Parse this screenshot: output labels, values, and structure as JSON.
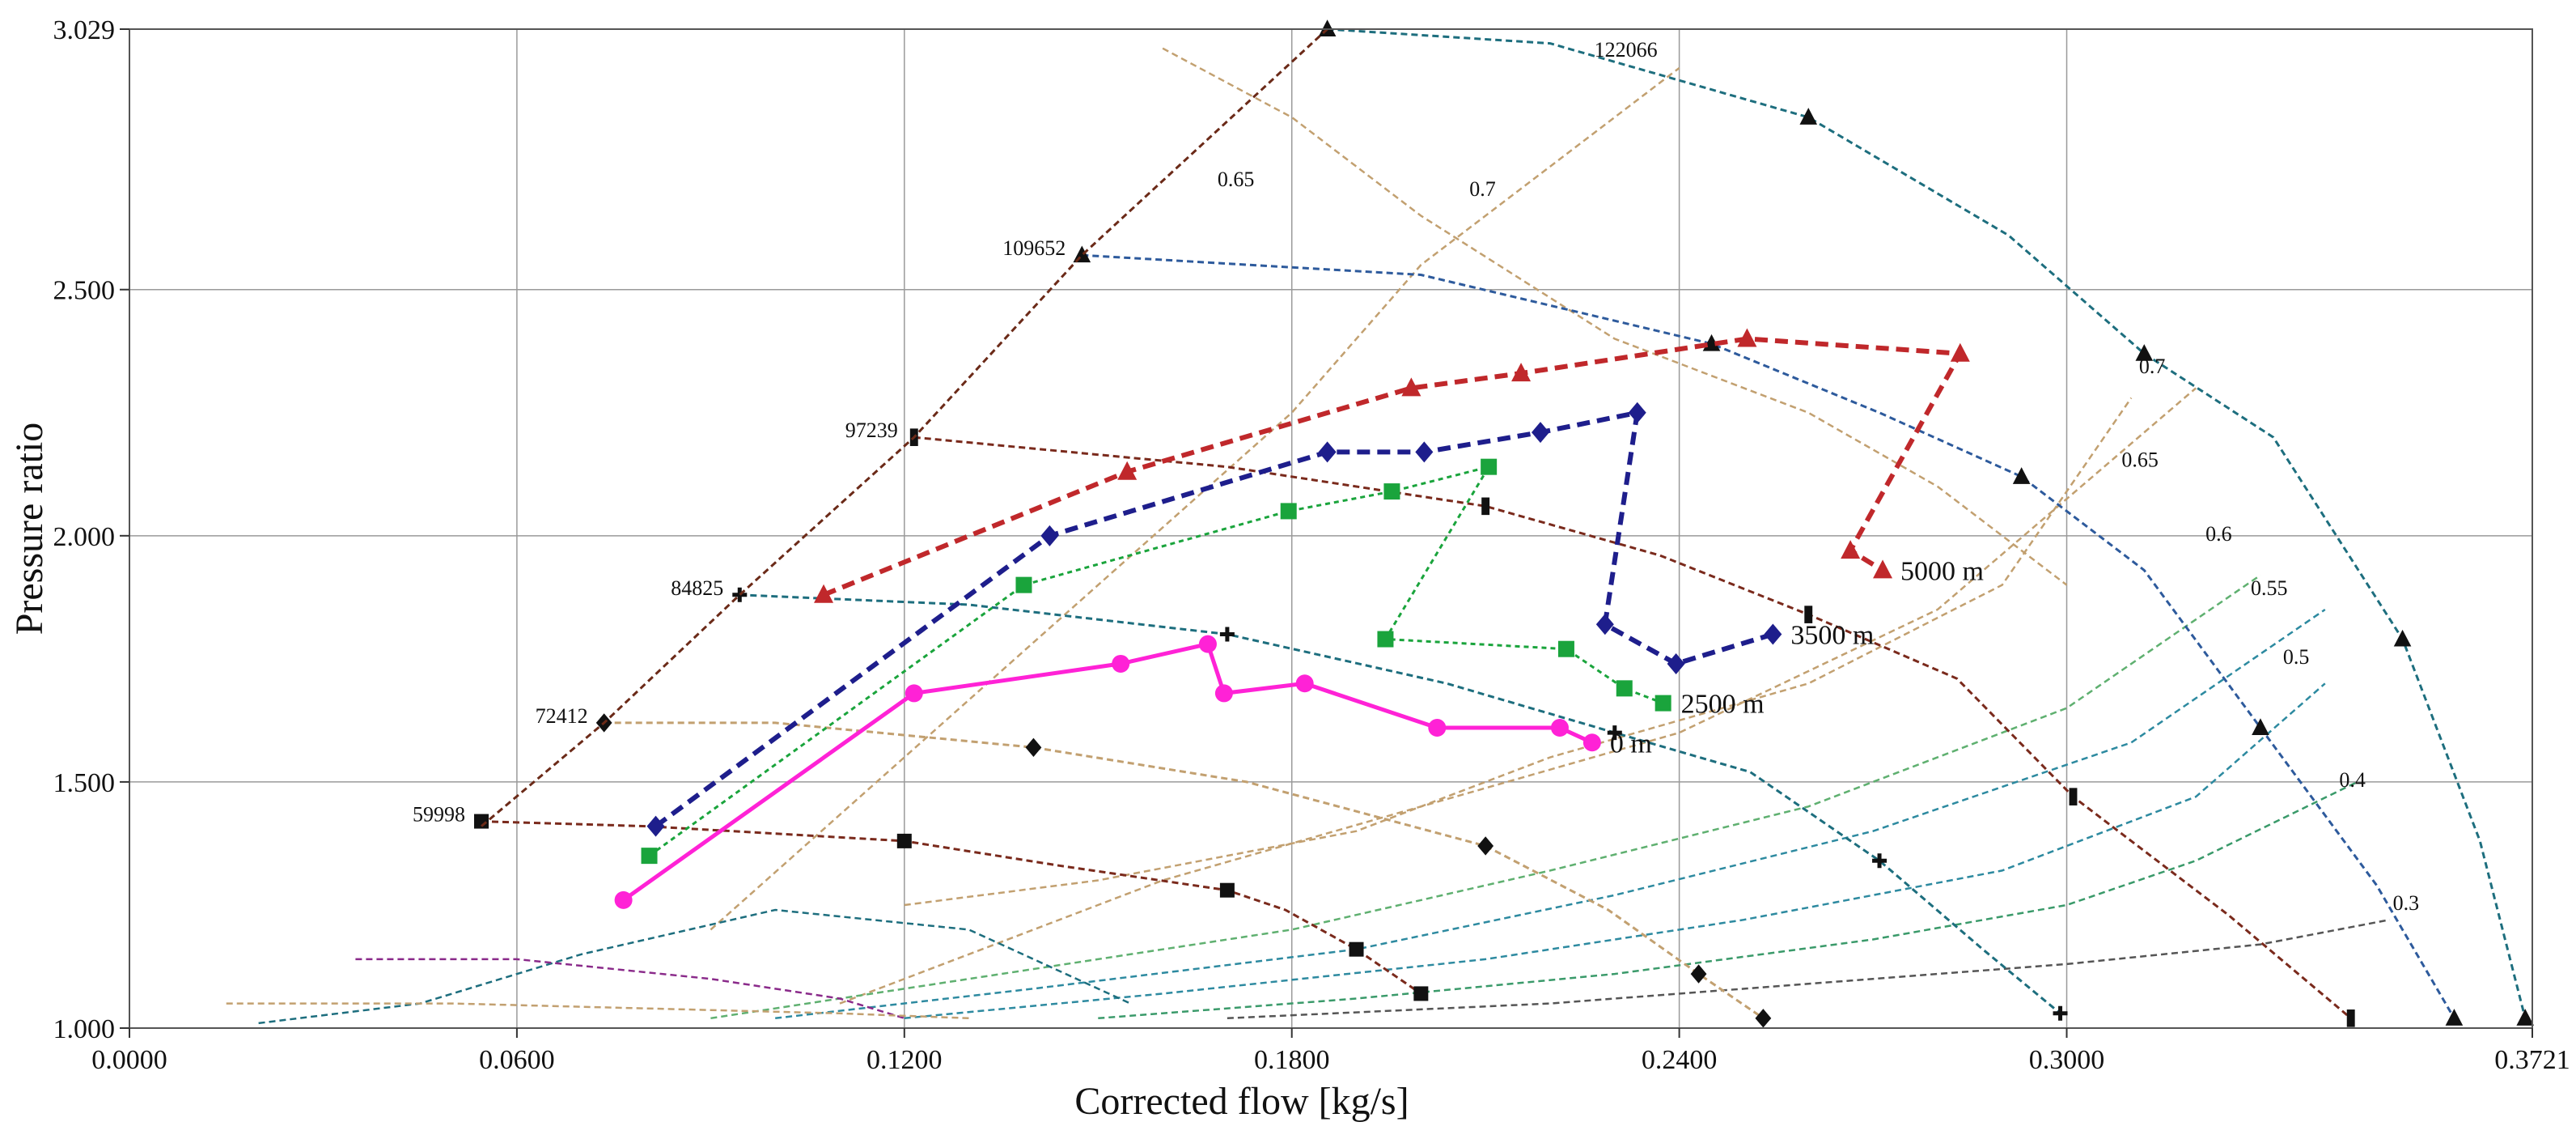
{
  "chart_data": {
    "type": "line",
    "title": "",
    "xlabel": "Corrected flow [kg/s]",
    "ylabel": "Pressure ratio",
    "xlim": [
      0.0,
      0.3721
    ],
    "ylim": [
      1.0,
      3.029
    ],
    "x_ticks": [
      {
        "value": 0.0,
        "label": "0.0000"
      },
      {
        "value": 0.06,
        "label": "0.0600"
      },
      {
        "value": 0.12,
        "label": "0.1200"
      },
      {
        "value": 0.18,
        "label": "0.1800"
      },
      {
        "value": 0.24,
        "label": "0.2400"
      },
      {
        "value": 0.3,
        "label": "0.3000"
      },
      {
        "value": 0.3721,
        "label": "0.3721"
      }
    ],
    "y_ticks": [
      {
        "value": 1.0,
        "label": "1.000"
      },
      {
        "value": 1.5,
        "label": "1.500"
      },
      {
        "value": 2.0,
        "label": "2.000"
      },
      {
        "value": 2.5,
        "label": "2.500"
      },
      {
        "value": 3.029,
        "label": "3.029"
      }
    ],
    "grid": true,
    "surge_line": {
      "color": "#6b2a18",
      "x": [
        0.0545,
        0.0735,
        0.0945,
        0.1215,
        0.1475,
        0.1855
      ],
      "y": [
        1.41,
        1.62,
        1.88,
        2.2,
        2.57,
        3.029
      ]
    },
    "speed_lines": [
      {
        "name": "59998",
        "label": "59998",
        "color": "#7a2a1c",
        "marker": "square",
        "x": [
          0.0545,
          0.08,
          0.12,
          0.144,
          0.17,
          0.179,
          0.19,
          0.2
        ],
        "y": [
          1.42,
          1.41,
          1.38,
          1.33,
          1.28,
          1.24,
          1.16,
          1.07
        ]
      },
      {
        "name": "72412",
        "label": "72412",
        "color": "#c2a070",
        "marker": "diamond",
        "x": [
          0.0735,
          0.1,
          0.14,
          0.173,
          0.21,
          0.229,
          0.243,
          0.253
        ],
        "y": [
          1.62,
          1.62,
          1.57,
          1.5,
          1.37,
          1.24,
          1.11,
          1.02
        ]
      },
      {
        "name": "84825",
        "label": "84825",
        "color": "#1d6e7e",
        "marker": "plus",
        "x": [
          0.0945,
          0.13,
          0.17,
          0.204,
          0.23,
          0.251,
          0.271,
          0.287,
          0.299
        ],
        "y": [
          1.88,
          1.86,
          1.8,
          1.7,
          1.6,
          1.52,
          1.34,
          1.16,
          1.03
        ]
      },
      {
        "name": "97239",
        "label": "97239",
        "color": "#7a2a1c",
        "marker": "bar",
        "x": [
          0.1215,
          0.17,
          0.21,
          0.237,
          0.26,
          0.283,
          0.301,
          0.325,
          0.344
        ],
        "y": [
          2.2,
          2.14,
          2.06,
          1.96,
          1.84,
          1.71,
          1.47,
          1.23,
          1.02
        ]
      },
      {
        "name": "109652",
        "label": "109652",
        "color": "#2d5a9c",
        "marker": "triangle",
        "x": [
          0.1475,
          0.2,
          0.245,
          0.271,
          0.293,
          0.312,
          0.33,
          0.348,
          0.36
        ],
        "y": [
          2.57,
          2.53,
          2.39,
          2.25,
          2.12,
          1.93,
          1.61,
          1.29,
          1.02
        ]
      },
      {
        "name": "122066",
        "label": "122066",
        "color": "#1d6e7e",
        "marker": "triangle",
        "x": [
          0.1855,
          0.22,
          0.26,
          0.291,
          0.312,
          0.332,
          0.352,
          0.364,
          0.371
        ],
        "y": [
          3.029,
          3.0,
          2.85,
          2.61,
          2.37,
          2.2,
          1.79,
          1.38,
          1.02
        ]
      }
    ],
    "efficiency_labels": [
      {
        "label": "0.65",
        "x": 0.1685,
        "y": 2.71
      },
      {
        "label": "0.7",
        "x": 0.2075,
        "y": 2.69
      },
      {
        "label": "0.7",
        "x": 0.3112,
        "y": 2.33
      },
      {
        "label": "0.65",
        "x": 0.3085,
        "y": 2.14
      },
      {
        "label": "0.6",
        "x": 0.3215,
        "y": 1.99
      },
      {
        "label": "0.55",
        "x": 0.3285,
        "y": 1.88
      },
      {
        "label": "0.5",
        "x": 0.3335,
        "y": 1.74
      },
      {
        "label": "0.4",
        "x": 0.3422,
        "y": 1.49
      },
      {
        "label": "0.3",
        "x": 0.3505,
        "y": 1.24
      }
    ],
    "series": [
      {
        "name": "0 m",
        "label": "0 m",
        "color": "#ff22d6",
        "marker": "circle",
        "x": [
          0.0765,
          0.1215,
          0.1535,
          0.167,
          0.1695,
          0.182,
          0.2025,
          0.2215,
          0.2265
        ],
        "y": [
          1.26,
          1.68,
          1.74,
          1.78,
          1.68,
          1.7,
          1.61,
          1.61,
          1.58
        ]
      },
      {
        "name": "2500 m",
        "label": "2500 m",
        "color": "#1aa43c",
        "marker": "square",
        "x": [
          0.0805,
          0.1385,
          0.1795,
          0.1955,
          0.2105,
          0.1945,
          0.2225,
          0.2315,
          0.2375
        ],
        "y": [
          1.35,
          1.9,
          2.05,
          2.09,
          2.14,
          1.79,
          1.77,
          1.69,
          1.66
        ]
      },
      {
        "name": "3500 m",
        "label": "3500 m",
        "color": "#1e1e8c",
        "marker": "diamond",
        "x": [
          0.0815,
          0.1425,
          0.1855,
          0.2005,
          0.2185,
          0.2335,
          0.2285,
          0.2395,
          0.2545
        ],
        "y": [
          1.41,
          2.0,
          2.17,
          2.17,
          2.21,
          2.25,
          1.82,
          1.74,
          1.8
        ]
      },
      {
        "name": "5000 m",
        "label": "5000 m",
        "color": "#c0282b",
        "marker": "triangle",
        "x": [
          0.1075,
          0.1545,
          0.1985,
          0.2155,
          0.2505,
          0.2835,
          0.2665,
          0.2715
        ],
        "y": [
          1.88,
          2.13,
          2.3,
          2.33,
          2.4,
          2.37,
          1.97,
          1.93
        ]
      }
    ]
  }
}
